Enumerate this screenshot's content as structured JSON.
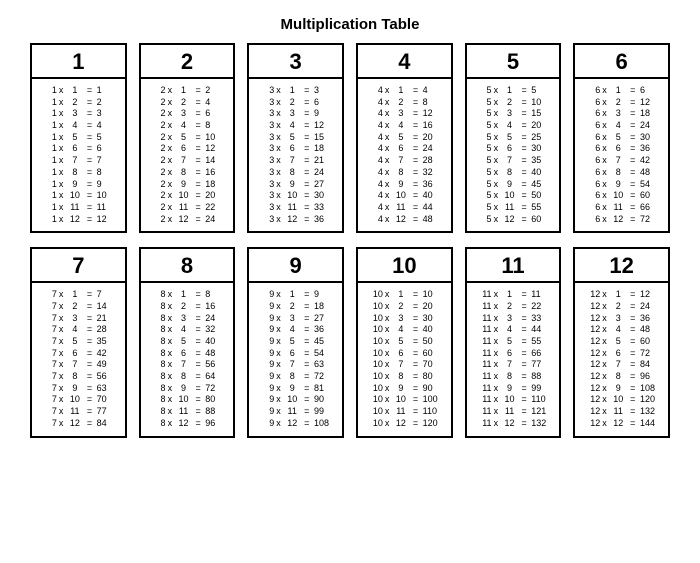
{
  "title": "Multiplication Table",
  "layout": {
    "columns": 6,
    "rows": 2,
    "card_border_color": "#000000",
    "card_border_width": 2,
    "background_color": "#ffffff",
    "text_color": "#000000",
    "title_fontsize": 15,
    "header_fontsize": 22,
    "equation_fontsize": 9
  },
  "multipliers": [
    1,
    2,
    3,
    4,
    5,
    6,
    7,
    8,
    9,
    10,
    11,
    12
  ],
  "multiplicands": [
    1,
    2,
    3,
    4,
    5,
    6,
    7,
    8,
    9,
    10,
    11,
    12
  ],
  "operator_symbol": "x",
  "equals_symbol": "="
}
